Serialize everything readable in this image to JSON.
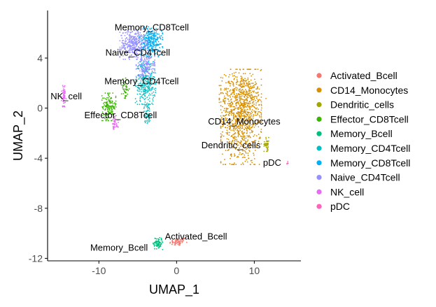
{
  "chart_data": {
    "type": "scatter",
    "title": "",
    "xlabel": "UMAP_1",
    "ylabel": "UMAP_2",
    "xlim": [
      -16.6,
      16.0
    ],
    "ylim": [
      -12.2,
      7.8
    ],
    "x_ticks": [
      -10,
      0,
      10
    ],
    "y_ticks": [
      4,
      0,
      -4,
      -8,
      -12
    ],
    "x_tick_labels": [
      "-10",
      "0",
      "10"
    ],
    "y_tick_labels": [
      "4",
      "0",
      "-4",
      "-8",
      "-12"
    ],
    "grid": false,
    "legend": {
      "placement": "right"
    },
    "series": [
      {
        "name": "Activated_Bcell",
        "color": "#F8766D"
      },
      {
        "name": "CD14_Monocytes",
        "color": "#D89000"
      },
      {
        "name": "Dendritic_cells",
        "color": "#A3A500"
      },
      {
        "name": "Effector_CD8Tcell",
        "color": "#39B600"
      },
      {
        "name": "Memory_Bcell",
        "color": "#00BF7D"
      },
      {
        "name": "Memory_CD4Tcell",
        "color": "#00BFC4"
      },
      {
        "name": "Memory_CD8Tcell",
        "color": "#00B0F6"
      },
      {
        "name": "Naive_CD4Tcell",
        "color": "#9590FF"
      },
      {
        "name": "NK_cell",
        "color": "#E76BF3"
      },
      {
        "name": "pDC",
        "color": "#FF62BC"
      }
    ],
    "clusters": [
      {
        "series": 0,
        "shapes": [
          {
            "cx": 0.2,
            "cy": -10.7,
            "sx": 1.1,
            "sy": 0.3,
            "n": 60,
            "rot": 0.08
          }
        ]
      },
      {
        "series": 1,
        "shapes": [
          {
            "cx": 8.3,
            "cy": -0.7,
            "sx": 2.6,
            "sy": 3.8,
            "n": 900,
            "rot": 0
          },
          {
            "cx": 8.5,
            "cy": 0.9,
            "sx": 3.0,
            "sy": 1.6,
            "n": 200,
            "rot": 0
          }
        ]
      },
      {
        "series": 2,
        "shapes": [
          {
            "cx": 11.6,
            "cy": -2.9,
            "sx": 0.35,
            "sy": 0.55,
            "n": 45,
            "rot": 0
          }
        ]
      },
      {
        "series": 3,
        "shapes": [
          {
            "cx": -8.7,
            "cy": 0.1,
            "sx": 0.9,
            "sy": 1.1,
            "n": 150,
            "rot": 0
          },
          {
            "cx": -6.6,
            "cy": 1.6,
            "sx": 0.5,
            "sy": 0.8,
            "n": 50,
            "rot": 0
          }
        ]
      },
      {
        "series": 4,
        "shapes": [
          {
            "cx": -2.4,
            "cy": -10.8,
            "sx": 0.6,
            "sy": 0.5,
            "n": 80,
            "rot": 0
          }
        ]
      },
      {
        "series": 5,
        "shapes": [
          {
            "cx": -4.0,
            "cy": 2.0,
            "sx": 1.3,
            "sy": 1.7,
            "n": 280,
            "rot": 0
          },
          {
            "cx": -3.8,
            "cy": -0.4,
            "sx": 0.4,
            "sy": 0.8,
            "n": 60,
            "rot": 0
          }
        ]
      },
      {
        "series": 6,
        "shapes": [
          {
            "cx": -3.3,
            "cy": 5.3,
            "sx": 1.5,
            "sy": 1.2,
            "n": 300,
            "rot": 0
          }
        ]
      },
      {
        "series": 7,
        "shapes": [
          {
            "cx": -5.5,
            "cy": 5.1,
            "sx": 1.8,
            "sy": 1.2,
            "n": 330,
            "rot": 0
          },
          {
            "cx": -4.0,
            "cy": 3.3,
            "sx": 1.2,
            "sy": 0.9,
            "n": 150,
            "rot": 0
          }
        ]
      },
      {
        "series": 8,
        "shapes": [
          {
            "cx": -14.5,
            "cy": 1.0,
            "sx": 0.3,
            "sy": 0.9,
            "n": 60,
            "rot": 0
          },
          {
            "cx": -8.0,
            "cy": -1.3,
            "sx": 0.5,
            "sy": 0.6,
            "n": 40,
            "rot": 0
          }
        ]
      },
      {
        "series": 9,
        "shapes": [
          {
            "cx": 14.3,
            "cy": -4.4,
            "sx": 0.15,
            "sy": 0.2,
            "n": 5,
            "rot": 0
          }
        ]
      }
    ],
    "annotations": [
      {
        "text": "Memory_CD8Tcell",
        "x": -3.2,
        "y": 6.2,
        "anchor": "middle"
      },
      {
        "text": "Naive_CD4Tcell",
        "x": -5.0,
        "y": 4.2,
        "anchor": "middle"
      },
      {
        "text": "Memory_CD4Tcell",
        "x": -4.5,
        "y": 1.9,
        "anchor": "middle"
      },
      {
        "text": "NK_cell",
        "x": -14.2,
        "y": 0.7,
        "anchor": "middle"
      },
      {
        "text": "Effector_CD8Tcell",
        "x": -7.2,
        "y": -0.8,
        "anchor": "middle"
      },
      {
        "text": "CD14_Monocytes",
        "x": 8.7,
        "y": -1.3,
        "anchor": "middle"
      },
      {
        "text": "Dendritic_cells",
        "x": 7.0,
        "y": -3.2,
        "anchor": "middle"
      },
      {
        "text": "pDC",
        "x": 12.3,
        "y": -4.6,
        "anchor": "middle"
      },
      {
        "text": "Activated_Bcell",
        "x": 2.5,
        "y": -10.5,
        "anchor": "middle"
      },
      {
        "text": "Memory_Bcell",
        "x": -7.4,
        "y": -11.4,
        "anchor": "middle"
      }
    ]
  }
}
